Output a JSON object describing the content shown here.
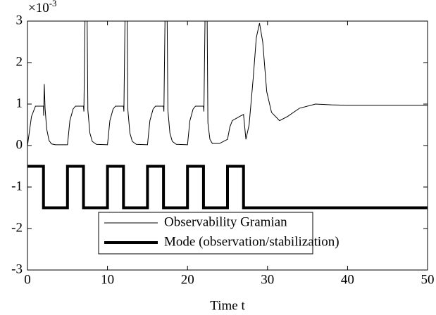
{
  "chart_data": {
    "type": "line",
    "xlabel": "Time t",
    "y_multiplier": {
      "base": "×10",
      "exponent": "-3"
    },
    "xlim": [
      0,
      50
    ],
    "xticks": [
      0,
      10,
      20,
      30,
      40,
      50
    ],
    "ylim": [
      -3,
      3
    ],
    "yticks": [
      -3,
      -2,
      -1,
      0,
      1,
      2,
      3
    ],
    "legend": "lower center",
    "series": [
      {
        "name": "Observability Gramian",
        "color": "#000000",
        "width": 1,
        "x": [
          0,
          0.5,
          1,
          2,
          2.02,
          2.1,
          2.2,
          2.4,
          2.7,
          3,
          3.5,
          5,
          5.3,
          5.7,
          6,
          7,
          7.05,
          7.2,
          7.45,
          7.55,
          7.8,
          8.1,
          8.6,
          10,
          10.3,
          10.7,
          11,
          12,
          12.05,
          12.2,
          12.45,
          12.55,
          12.8,
          13.1,
          13.6,
          15,
          15.3,
          15.7,
          16,
          17,
          17.05,
          17.2,
          17.45,
          17.55,
          17.8,
          18.1,
          18.6,
          20,
          20.3,
          20.7,
          21,
          22,
          22.05,
          22.2,
          22.45,
          22.55,
          22.8,
          23.1,
          24,
          25,
          25.3,
          25.6,
          26.5,
          27,
          27.3,
          27.7,
          28.2,
          28.6,
          29,
          29.4,
          29.9,
          30.5,
          31.5,
          32.5,
          34,
          36,
          38,
          40,
          50
        ],
        "values": [
          0,
          0.7,
          0.95,
          0.95,
          0.72,
          1.48,
          0.9,
          0.4,
          0.12,
          0.04,
          0.02,
          0.02,
          0.6,
          0.88,
          0.95,
          0.95,
          0.82,
          3.2,
          3.2,
          0.85,
          0.3,
          0.1,
          0.03,
          0.02,
          0.6,
          0.88,
          0.95,
          0.95,
          0.82,
          3.2,
          3.2,
          0.85,
          0.3,
          0.1,
          0.03,
          0.02,
          0.6,
          0.88,
          0.95,
          0.95,
          0.82,
          3.2,
          3.2,
          0.85,
          0.3,
          0.1,
          0.03,
          0.02,
          0.6,
          0.88,
          0.95,
          0.95,
          0.82,
          3.2,
          3.2,
          0.55,
          0.15,
          0.05,
          0.05,
          0.15,
          0.45,
          0.6,
          0.7,
          0.75,
          0.15,
          0.5,
          1.6,
          2.6,
          2.95,
          2.5,
          1.3,
          0.8,
          0.6,
          0.7,
          0.9,
          1.0,
          0.98,
          0.97,
          0.97
        ]
      },
      {
        "name": "Mode (observation/stabilization)",
        "color": "#000000",
        "width": 4,
        "x": [
          0,
          2,
          2,
          5,
          5,
          7,
          7,
          10,
          10,
          12,
          12,
          15,
          15,
          17,
          17,
          20,
          20,
          22,
          22,
          25,
          25,
          27,
          27,
          50
        ],
        "values": [
          -0.5,
          -0.5,
          -1.5,
          -1.5,
          -0.5,
          -0.5,
          -1.5,
          -1.5,
          -0.5,
          -0.5,
          -1.5,
          -1.5,
          -0.5,
          -0.5,
          -1.5,
          -1.5,
          -0.5,
          -0.5,
          -1.5,
          -1.5,
          -0.5,
          -0.5,
          -1.5,
          -1.5
        ]
      }
    ]
  }
}
